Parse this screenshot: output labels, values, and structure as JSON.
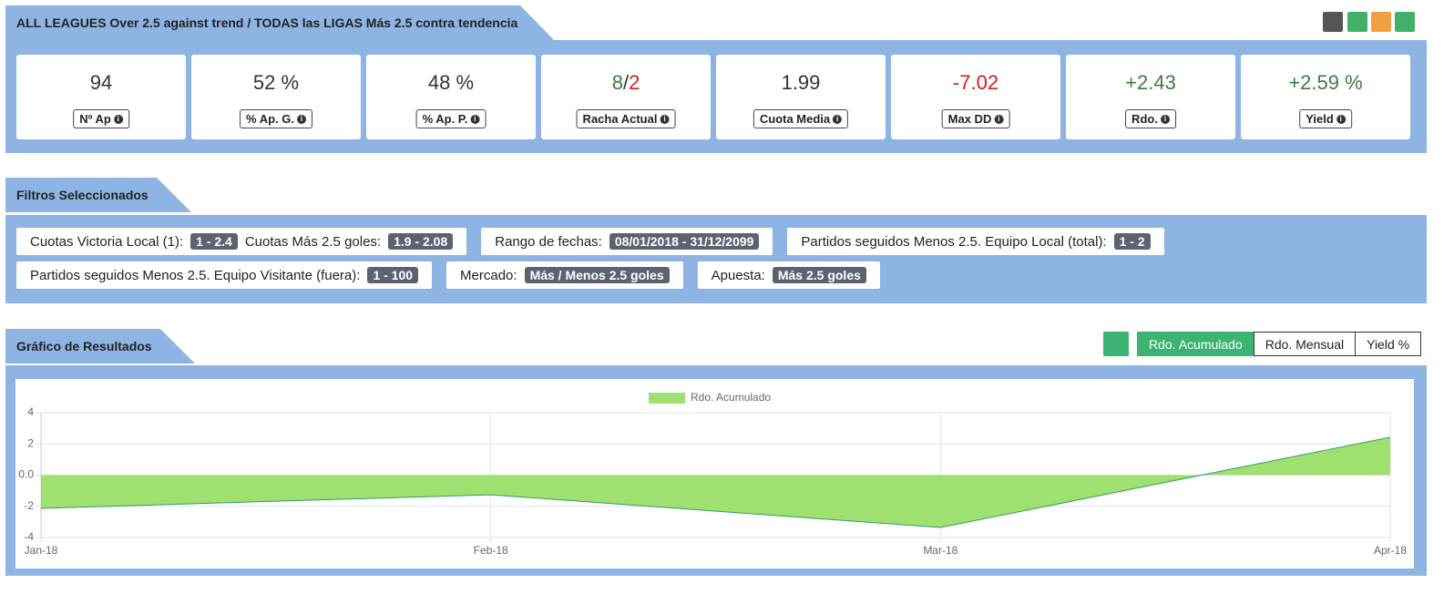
{
  "header": {
    "title": "ALL LEAGUES Over 2.5 against trend / TODAS las LIGAS Más 2.5 contra tendencia"
  },
  "stats": [
    {
      "parts": [
        {
          "text": "94",
          "color": "#333333"
        }
      ],
      "label": "Nº Ap"
    },
    {
      "parts": [
        {
          "text": "52 %",
          "color": "#333333"
        }
      ],
      "label": "% Ap. G."
    },
    {
      "parts": [
        {
          "text": "48 %",
          "color": "#333333"
        }
      ],
      "label": "% Ap. P."
    },
    {
      "parts": [
        {
          "text": "8",
          "color": "#3c7d3c"
        },
        {
          "text": "/",
          "color": "#333333"
        },
        {
          "text": "2",
          "color": "#cc1f1f"
        }
      ],
      "label": "Racha Actual"
    },
    {
      "parts": [
        {
          "text": "1.99",
          "color": "#333333"
        }
      ],
      "label": "Cuota Media"
    },
    {
      "parts": [
        {
          "text": "-7.02",
          "color": "#cc1f1f"
        }
      ],
      "label": "Max DD"
    },
    {
      "parts": [
        {
          "text": "+2.43",
          "color": "#3c7d3c"
        }
      ],
      "label": "Rdo."
    },
    {
      "parts": [
        {
          "text": "+2.59 %",
          "color": "#3c7d3c"
        }
      ],
      "label": "Yield"
    }
  ],
  "filters": {
    "title": "Filtros Seleccionados",
    "rows": [
      [
        {
          "items": [
            {
              "label": "Cuotas Victoria Local (1):",
              "value": "1 - 2.4"
            },
            {
              "label": "Cuotas Más 2.5 goles:",
              "value": "1.9 - 2.08"
            }
          ]
        },
        {
          "items": [
            {
              "label": "Rango de fechas:",
              "value": "08/01/2018 - 31/12/2099"
            }
          ]
        },
        {
          "items": [
            {
              "label": "Partidos seguidos Menos 2.5. Equipo Local (total):",
              "value": "1 - 2"
            }
          ]
        }
      ],
      [
        {
          "items": [
            {
              "label": "Partidos seguidos Menos 2.5. Equipo Visitante (fuera):",
              "value": "1 - 100"
            }
          ]
        },
        {
          "items": [
            {
              "label": "Mercado:",
              "value": "Más / Menos 2.5 goles"
            }
          ]
        },
        {
          "items": [
            {
              "label": "Apuesta:",
              "value": "Más 2.5 goles"
            }
          ]
        }
      ]
    ]
  },
  "results": {
    "title": "Gráfico de Resultados",
    "buttons": [
      "Rdo. Acumulado",
      "Rdo. Mensual",
      "Yield %"
    ]
  },
  "chart_data": {
    "type": "area",
    "categories": [
      "Jan-18",
      "Feb-18",
      "Mar-18",
      "Apr-18"
    ],
    "series": [
      {
        "name": "Rdo. Acumulado",
        "color": "#a0e070",
        "line_color": "#2e9e6a",
        "values": [
          -2.13,
          -1.26,
          -3.36,
          2.43
        ]
      }
    ],
    "ylim": [
      -4,
      4
    ],
    "yticks": [
      -4,
      -2,
      {
        "value": 0,
        "label": "0.0"
      },
      2,
      4
    ],
    "grid": true
  }
}
